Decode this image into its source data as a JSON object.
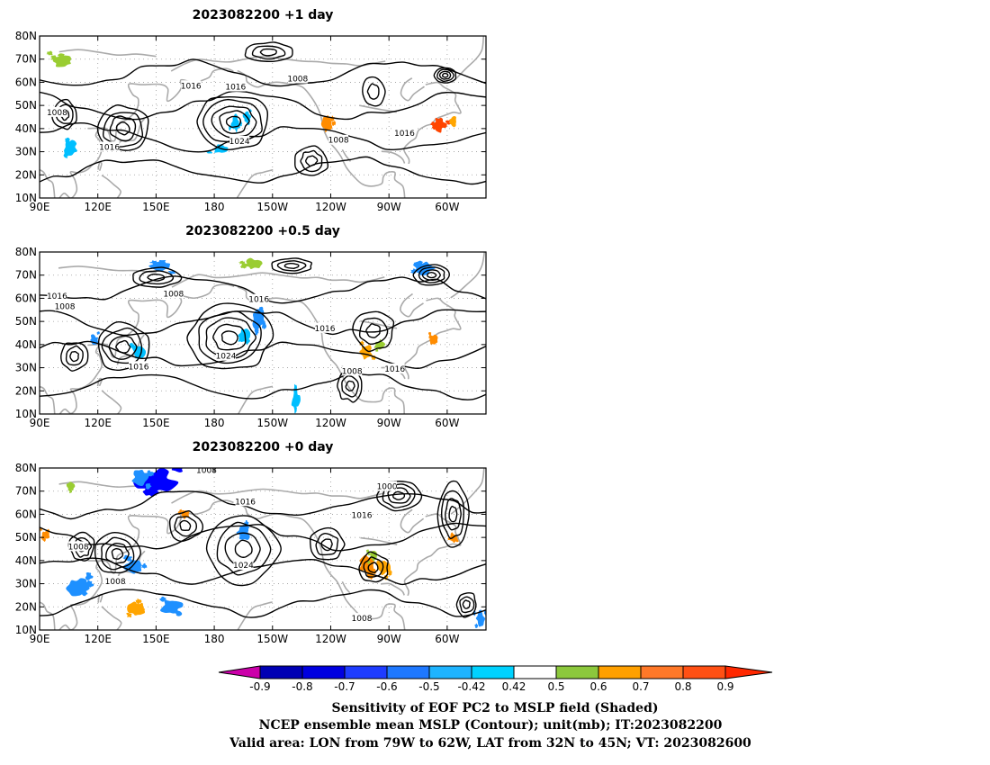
{
  "chart_data": [
    {
      "type": "map-contour",
      "title": "2023082200  +1 day",
      "x_ticks": [
        "90E",
        "120E",
        "150E",
        "180",
        "150W",
        "120W",
        "90W",
        "60W"
      ],
      "y_ticks": [
        "10N",
        "20N",
        "30N",
        "40N",
        "50N",
        "60N",
        "70N",
        "80N"
      ],
      "contour_labels": [
        {
          "text": "1016",
          "lon": 168,
          "lat": 58.5
        },
        {
          "text": "1016",
          "lon": 191,
          "lat": 58
        },
        {
          "text": "1008",
          "lon": 223,
          "lat": 61.5
        },
        {
          "text": "1008",
          "lon": 99,
          "lat": 47
        },
        {
          "text": "1016",
          "lon": 126,
          "lat": 32
        },
        {
          "text": "1024",
          "lon": 193,
          "lat": 34.5
        },
        {
          "text": "1008",
          "lon": 244,
          "lat": 35
        },
        {
          "text": "1016",
          "lon": 278,
          "lat": 38
        }
      ],
      "shaded": [
        {
          "lon": 102,
          "lat": 69,
          "rx": 5,
          "ry": 2.5,
          "color": "#9acd32"
        },
        {
          "lon": 106,
          "lat": 32,
          "rx": 3,
          "ry": 3,
          "color": "#00bfff"
        },
        {
          "lon": 183,
          "lat": 31,
          "rx": 4,
          "ry": 1.5,
          "color": "#00bfff"
        },
        {
          "lon": 191,
          "lat": 42,
          "rx": 2,
          "ry": 3,
          "color": "#00bfff"
        },
        {
          "lon": 197,
          "lat": 45,
          "rx": 2,
          "ry": 2,
          "color": "#00bfff"
        },
        {
          "lon": 238,
          "lat": 42,
          "rx": 2.5,
          "ry": 3,
          "color": "#ff8c00"
        },
        {
          "lon": 296,
          "lat": 42,
          "rx": 3,
          "ry": 3,
          "color": "#ff4500"
        },
        {
          "lon": 303,
          "lat": 43,
          "rx": 2,
          "ry": 2,
          "color": "#ffa500"
        }
      ]
    },
    {
      "type": "map-contour",
      "title": "2023082200  +0.5 day",
      "x_ticks": [
        "90E",
        "120E",
        "150E",
        "180",
        "150W",
        "120W",
        "90W",
        "60W"
      ],
      "y_ticks": [
        "10N",
        "20N",
        "30N",
        "40N",
        "50N",
        "60N",
        "70N",
        "80N"
      ],
      "contour_labels": [
        {
          "text": "1016",
          "lon": 99,
          "lat": 61
        },
        {
          "text": "1008",
          "lon": 103,
          "lat": 56.5
        },
        {
          "text": "1008",
          "lon": 159,
          "lat": 62
        },
        {
          "text": "1016",
          "lon": 203,
          "lat": 59.5
        },
        {
          "text": "1016",
          "lon": 237,
          "lat": 47
        },
        {
          "text": "1016",
          "lon": 141,
          "lat": 30.5
        },
        {
          "text": "1024",
          "lon": 186,
          "lat": 35
        },
        {
          "text": "1008",
          "lon": 251,
          "lat": 28.5
        },
        {
          "text": "1016",
          "lon": 273,
          "lat": 29.5
        }
      ],
      "shaded": [
        {
          "lon": 152,
          "lat": 74,
          "rx": 5,
          "ry": 2,
          "color": "#1e90ff"
        },
        {
          "lon": 200,
          "lat": 75,
          "rx": 4,
          "ry": 2,
          "color": "#9acd32"
        },
        {
          "lon": 288,
          "lat": 73,
          "rx": 5,
          "ry": 2.5,
          "color": "#1e90ff"
        },
        {
          "lon": 203,
          "lat": 51,
          "rx": 3,
          "ry": 4,
          "color": "#1e90ff"
        },
        {
          "lon": 196,
          "lat": 44,
          "rx": 3,
          "ry": 3,
          "color": "#00bfff"
        },
        {
          "lon": 258,
          "lat": 37,
          "rx": 3,
          "ry": 3,
          "color": "#ffa500"
        },
        {
          "lon": 266,
          "lat": 40,
          "rx": 2,
          "ry": 2,
          "color": "#9acd32"
        },
        {
          "lon": 293,
          "lat": 42,
          "rx": 2,
          "ry": 2,
          "color": "#ff8c00"
        },
        {
          "lon": 141,
          "lat": 37,
          "rx": 3,
          "ry": 3,
          "color": "#00bfff"
        },
        {
          "lon": 118,
          "lat": 42,
          "rx": 2,
          "ry": 2,
          "color": "#1e90ff"
        },
        {
          "lon": 222,
          "lat": 16,
          "rx": 2,
          "ry": 4,
          "color": "#00bfff"
        }
      ]
    },
    {
      "type": "map-contour",
      "title": "2023082200  +0 day",
      "x_ticks": [
        "90E",
        "120E",
        "150E",
        "180",
        "150W",
        "120W",
        "90W",
        "60W"
      ],
      "y_ticks": [
        "10N",
        "20N",
        "30N",
        "40N",
        "50N",
        "60N",
        "70N",
        "80N"
      ],
      "contour_labels": [
        {
          "text": "1008",
          "lon": 176,
          "lat": 79
        },
        {
          "text": "1000",
          "lon": 269,
          "lat": 72
        },
        {
          "text": "1016",
          "lon": 196,
          "lat": 65.5
        },
        {
          "text": "1016",
          "lon": 256,
          "lat": 59.5
        },
        {
          "text": "1008",
          "lon": 110,
          "lat": 46
        },
        {
          "text": "1008",
          "lon": 129,
          "lat": 31
        },
        {
          "text": "1024",
          "lon": 195,
          "lat": 38
        },
        {
          "text": "1008",
          "lon": 256,
          "lat": 15
        }
      ],
      "shaded": [
        {
          "lon": 150,
          "lat": 74,
          "rx": 9,
          "ry": 5,
          "color": "#0000ff"
        },
        {
          "lon": 142,
          "lat": 76,
          "rx": 4,
          "ry": 3,
          "color": "#1e90ff"
        },
        {
          "lon": 165,
          "lat": 60,
          "rx": 2,
          "ry": 2,
          "color": "#ff8c00"
        },
        {
          "lon": 195,
          "lat": 52,
          "rx": 3,
          "ry": 3,
          "color": "#1e90ff"
        },
        {
          "lon": 259,
          "lat": 38,
          "rx": 4,
          "ry": 4,
          "color": "#ff8c00"
        },
        {
          "lon": 267,
          "lat": 37,
          "rx": 3,
          "ry": 3,
          "color": "#ffa500"
        },
        {
          "lon": 262,
          "lat": 42,
          "rx": 2,
          "ry": 2,
          "color": "#9acd32"
        },
        {
          "lon": 110,
          "lat": 28,
          "rx": 5,
          "ry": 4,
          "color": "#1e90ff"
        },
        {
          "lon": 138,
          "lat": 37,
          "rx": 4,
          "ry": 3,
          "color": "#1e90ff"
        },
        {
          "lon": 140,
          "lat": 19,
          "rx": 4,
          "ry": 3,
          "color": "#ffa500"
        },
        {
          "lon": 158,
          "lat": 20,
          "rx": 5,
          "ry": 3,
          "color": "#1e90ff"
        },
        {
          "lon": 303,
          "lat": 50,
          "rx": 2,
          "ry": 2,
          "color": "#ff8c00"
        },
        {
          "lon": 317,
          "lat": 15,
          "rx": 2,
          "ry": 3,
          "color": "#1e90ff"
        },
        {
          "lon": 93,
          "lat": 51,
          "rx": 2,
          "ry": 2,
          "color": "#ff8c00"
        },
        {
          "lon": 106,
          "lat": 72,
          "rx": 2,
          "ry": 2,
          "color": "#9acd32"
        }
      ]
    }
  ],
  "colorbar": {
    "labels": [
      "-0.9",
      "-0.8",
      "-0.7",
      "-0.6",
      "-0.5",
      "-0.42",
      "0.42",
      "0.5",
      "0.6",
      "0.7",
      "0.8",
      "0.9"
    ],
    "colors": [
      "#cc00aa",
      "#0000b4",
      "#0000e0",
      "#1e3cff",
      "#1e78ff",
      "#1eb4ff",
      "#00d2ff",
      "#ffffff",
      "#8cc83c",
      "#ffa000",
      "#ff7828",
      "#ff5014",
      "#ff2800",
      "#ff0000",
      "#ff96c8"
    ]
  },
  "caption": {
    "line1": "Sensitivity of EOF PC2 to MSLP field (Shaded)",
    "line2": "NCEP ensemble mean MSLP (Contour); unit(mb); IT:2023082200",
    "line3": "Valid area: LON from 79W to 62W, LAT from 32N to 45N; VT: 2023082600"
  }
}
